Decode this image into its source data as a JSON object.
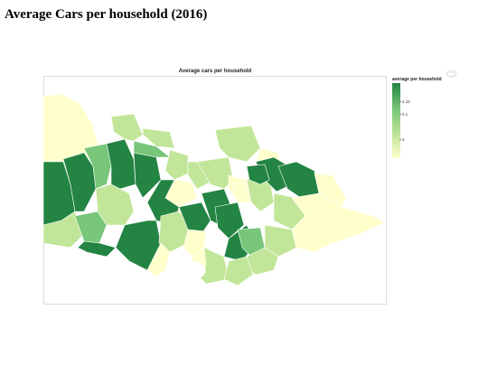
{
  "page": {
    "title": "Average Cars per household (2016)"
  },
  "map": {
    "title": "Average cars per household",
    "colors": {
      "low": "#ffffcc",
      "mid": "#c2e699",
      "midhigh": "#78c679",
      "high": "#238443",
      "water": "#ffffff"
    }
  },
  "legend": {
    "title": "average per household",
    "ticks": [
      "2.15",
      "2.1",
      "2"
    ]
  },
  "actions": {
    "more_label": "···"
  }
}
